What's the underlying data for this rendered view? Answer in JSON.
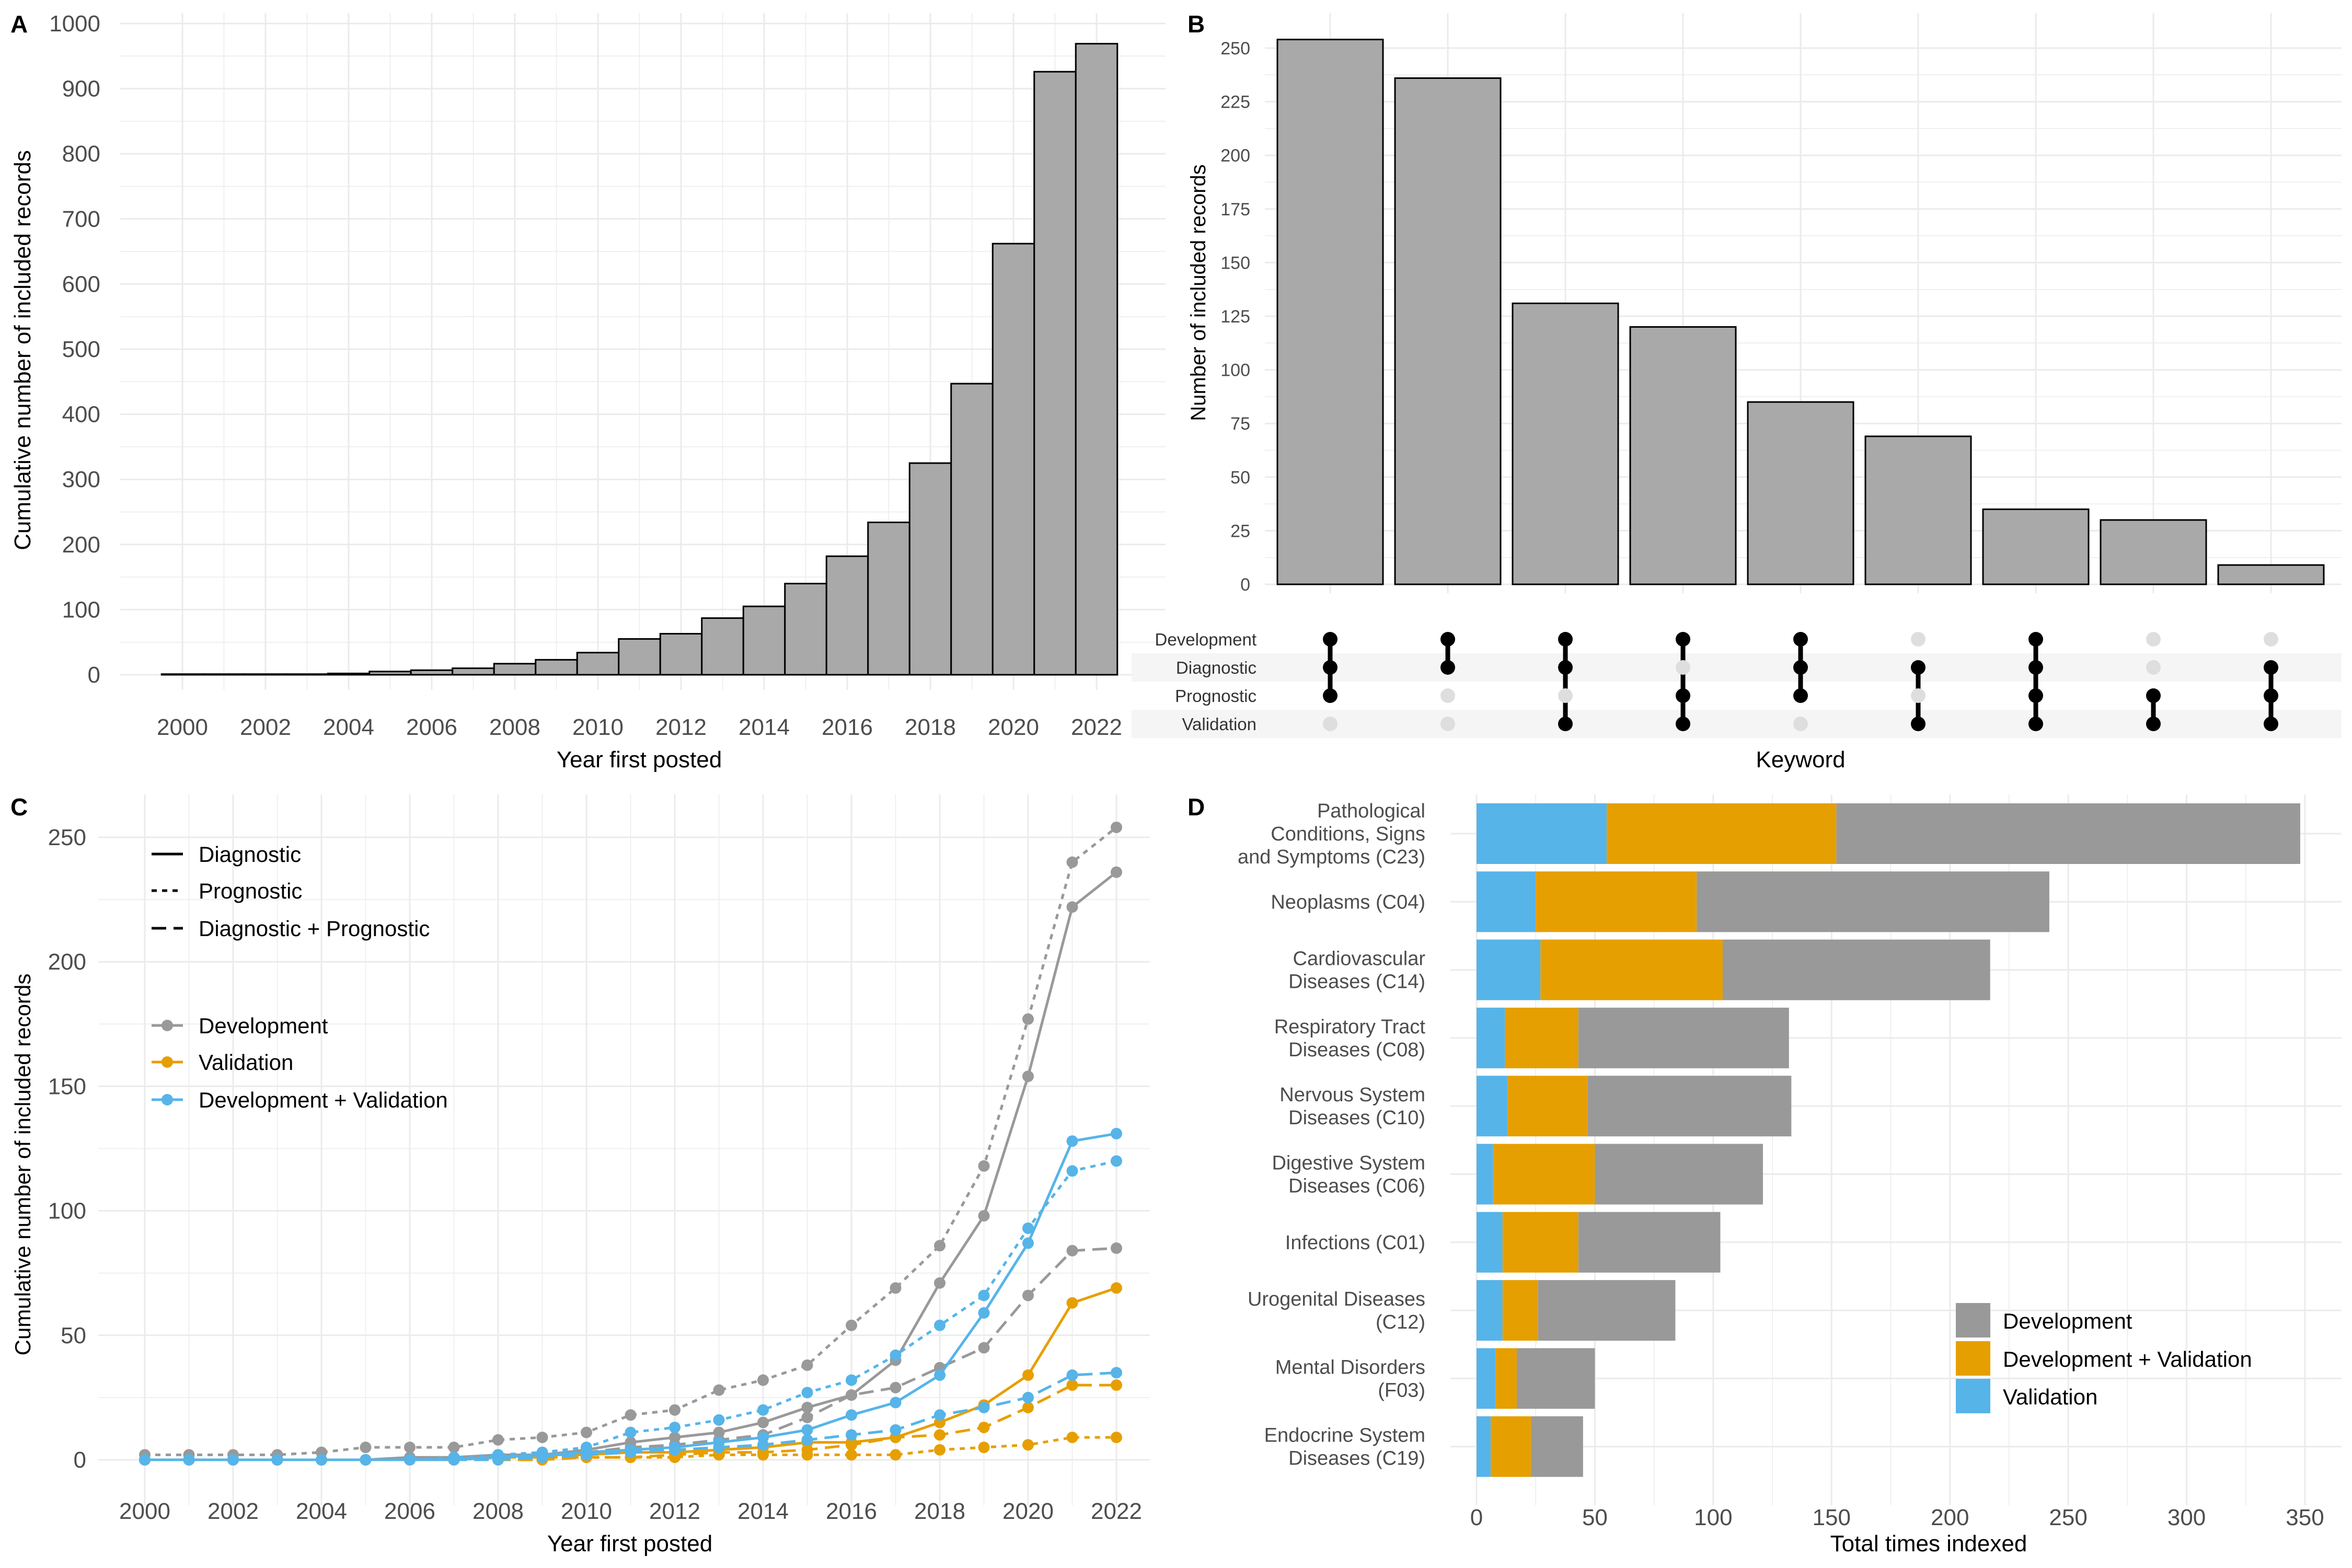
{
  "colors": {
    "bar_fill": "#A9A9A9",
    "development": "#999999",
    "validation": "#E69F00",
    "devval": "#56B4E9",
    "dot_active": "#000000",
    "dot_inactive": "#DEDEDE",
    "grid": "#EBEBEB",
    "stripe": "#F5F5F5"
  },
  "chart_data": [
    {
      "panel": "A",
      "type": "bar",
      "xlabel": "Year first posted",
      "ylabel": "Cumulative number of included records",
      "x": [
        2000,
        2001,
        2002,
        2003,
        2004,
        2005,
        2006,
        2007,
        2008,
        2009,
        2010,
        2011,
        2012,
        2013,
        2014,
        2015,
        2016,
        2017,
        2018,
        2019,
        2020,
        2021,
        2022
      ],
      "values": [
        1,
        1,
        1,
        1,
        2,
        5,
        7,
        10,
        17,
        23,
        34,
        55,
        63,
        87,
        105,
        140,
        182,
        234,
        325,
        447,
        662,
        926,
        969
      ],
      "xticks": [
        "2000",
        "2002",
        "2004",
        "2006",
        "2008",
        "2010",
        "2012",
        "2014",
        "2016",
        "2018",
        "2020",
        "2022"
      ],
      "yticks": [
        "0",
        "100",
        "200",
        "300",
        "400",
        "500",
        "600",
        "700",
        "800",
        "900",
        "1000"
      ],
      "ylim": [
        0,
        1000
      ],
      "grid": true
    },
    {
      "panel": "B",
      "type": "bar",
      "subtype": "upset",
      "xlabel": "Keyword",
      "ylabel": "Number of included records",
      "sets": [
        "Development",
        "Diagnostic",
        "Prognostic",
        "Validation"
      ],
      "values": [
        254,
        236,
        131,
        120,
        85,
        69,
        35,
        30,
        9
      ],
      "membership": [
        [
          true,
          true,
          true,
          false
        ],
        [
          true,
          true,
          false,
          false
        ],
        [
          true,
          true,
          false,
          true
        ],
        [
          true,
          false,
          true,
          true
        ],
        [
          true,
          true,
          true,
          false
        ],
        [
          false,
          true,
          false,
          true
        ],
        [
          true,
          true,
          true,
          true
        ],
        [
          false,
          false,
          true,
          true
        ],
        [
          false,
          true,
          true,
          true
        ]
      ],
      "yticks": [
        "0",
        "25",
        "50",
        "75",
        "100",
        "125",
        "150",
        "175",
        "200",
        "225",
        "250"
      ],
      "ylim": [
        0,
        262
      ],
      "grid": true
    },
    {
      "panel": "C",
      "type": "line",
      "xlabel": "Year first posted",
      "ylabel": "Cumulative number of included records",
      "x": [
        2000,
        2001,
        2002,
        2003,
        2004,
        2005,
        2006,
        2007,
        2008,
        2009,
        2010,
        2011,
        2012,
        2013,
        2014,
        2015,
        2016,
        2017,
        2018,
        2019,
        2020,
        2021,
        2022
      ],
      "xticks": [
        "2000",
        "2002",
        "2004",
        "2006",
        "2008",
        "2010",
        "2012",
        "2014",
        "2016",
        "2018",
        "2020",
        "2022"
      ],
      "yticks": [
        "0",
        "50",
        "100",
        "150",
        "200",
        "250"
      ],
      "ylim": [
        -6,
        262
      ],
      "linetype_legend": [
        "Diagnostic",
        "Prognostic",
        "Diagnostic + Prognostic"
      ],
      "color_legend": [
        "Development",
        "Validation",
        "Development + Validation"
      ],
      "series": [
        {
          "color": "development",
          "linetype": "Diagnostic",
          "values": [
            0,
            0,
            0,
            0,
            0,
            0,
            1,
            1,
            2,
            2,
            4,
            7,
            9,
            11,
            15,
            21,
            26,
            40,
            71,
            98,
            154,
            222,
            236
          ]
        },
        {
          "color": "development",
          "linetype": "Prognostic",
          "values": [
            2,
            2,
            2,
            2,
            3,
            5,
            5,
            5,
            8,
            9,
            11,
            18,
            20,
            28,
            32,
            38,
            54,
            69,
            86,
            118,
            177,
            240,
            254
          ]
        },
        {
          "color": "development",
          "linetype": "Diagnostic + Prognostic",
          "values": [
            0,
            0,
            0,
            0,
            0,
            0,
            0,
            0,
            1,
            1,
            3,
            5,
            6,
            8,
            10,
            17,
            26,
            29,
            37,
            45,
            66,
            84,
            85
          ]
        },
        {
          "color": "validation",
          "linetype": "Diagnostic",
          "values": [
            0,
            0,
            0,
            0,
            0,
            0,
            0,
            0,
            1,
            2,
            2,
            3,
            3,
            4,
            5,
            7,
            7,
            9,
            15,
            22,
            34,
            63,
            69
          ]
        },
        {
          "color": "validation",
          "linetype": "Prognostic",
          "values": [
            0,
            0,
            0,
            0,
            0,
            0,
            0,
            0,
            1,
            1,
            1,
            1,
            1,
            2,
            2,
            2,
            2,
            2,
            4,
            5,
            6,
            9,
            9
          ]
        },
        {
          "color": "validation",
          "linetype": "Diagnostic + Prognostic",
          "values": [
            0,
            0,
            0,
            0,
            0,
            0,
            0,
            0,
            0,
            0,
            1,
            1,
            2,
            3,
            3,
            4,
            6,
            9,
            10,
            13,
            21,
            30,
            30
          ]
        },
        {
          "color": "devval",
          "linetype": "Diagnostic",
          "values": [
            0,
            0,
            0,
            0,
            0,
            0,
            0,
            0,
            1,
            2,
            3,
            4,
            5,
            7,
            9,
            12,
            18,
            23,
            34,
            59,
            87,
            128,
            131
          ]
        },
        {
          "color": "devval",
          "linetype": "Prognostic",
          "values": [
            0,
            0,
            0,
            0,
            0,
            0,
            0,
            1,
            2,
            3,
            5,
            11,
            13,
            16,
            20,
            27,
            32,
            42,
            54,
            66,
            93,
            116,
            120
          ]
        },
        {
          "color": "devval",
          "linetype": "Diagnostic + Prognostic",
          "values": [
            0,
            0,
            0,
            0,
            0,
            0,
            0,
            0,
            0,
            1,
            2,
            3,
            4,
            5,
            6,
            8,
            10,
            12,
            18,
            21,
            25,
            34,
            35
          ]
        }
      ],
      "grid": true,
      "legend_position": "top-left"
    },
    {
      "panel": "D",
      "type": "bar",
      "orientation": "horizontal",
      "stacked": true,
      "xlabel": "Total times indexed",
      "categories": [
        [
          "Pathological",
          "Conditions, Signs",
          "and Symptoms (C23)"
        ],
        [
          "Neoplasms (C04)"
        ],
        [
          "Cardiovascular",
          "Diseases (C14)"
        ],
        [
          "Respiratory Tract",
          "Diseases (C08)"
        ],
        [
          "Nervous System",
          "Diseases (C10)"
        ],
        [
          "Digestive System",
          "Diseases (C06)"
        ],
        [
          "Infections (C01)"
        ],
        [
          "Urogenital Diseases",
          "(C12)"
        ],
        [
          "Mental Disorders",
          "(F03)"
        ],
        [
          "Endocrine System",
          "Diseases (C19)"
        ]
      ],
      "series": [
        {
          "name": "Validation",
          "color": "devval",
          "values": [
            55,
            25,
            27,
            12,
            13,
            7,
            11,
            11,
            8,
            6
          ]
        },
        {
          "name": "Development + Validation",
          "color": "validation",
          "values": [
            97,
            68,
            77,
            31,
            34,
            43,
            32,
            15,
            9,
            17
          ]
        },
        {
          "name": "Development",
          "color": "development",
          "values": [
            196,
            149,
            113,
            89,
            86,
            71,
            60,
            58,
            33,
            22
          ]
        }
      ],
      "legend": [
        "Development",
        "Development + Validation",
        "Validation"
      ],
      "xticks": [
        "0",
        "50",
        "100",
        "150",
        "200",
        "250",
        "300",
        "350"
      ],
      "xlim": [
        -7,
        358
      ],
      "grid": true,
      "legend_position": "bottom-right"
    }
  ],
  "panel_labels": [
    "A",
    "B",
    "C",
    "D"
  ]
}
